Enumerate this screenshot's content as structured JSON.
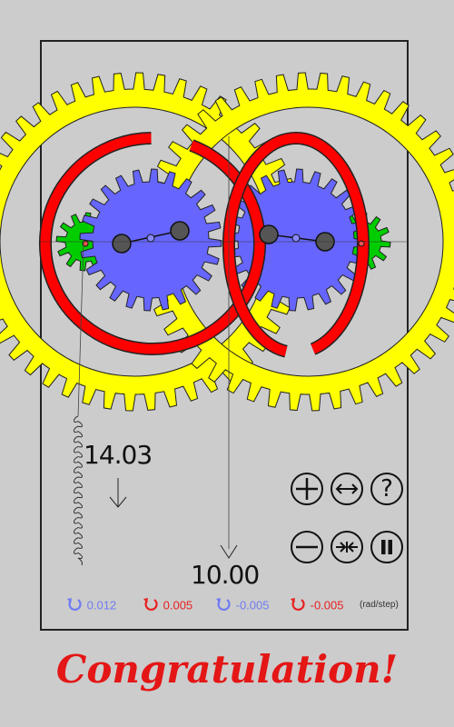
{
  "readouts": {
    "left_value": "14.03",
    "bottom_value": "10.00"
  },
  "rates": [
    {
      "label": "0.012",
      "color": "#6f7bf0",
      "direction": "counter-clockwise"
    },
    {
      "label": "0.005",
      "color": "#e82020",
      "direction": "counter-clockwise"
    },
    {
      "label": "-0.005",
      "color": "#6f7bf0",
      "direction": "counter-clockwise"
    },
    {
      "label": "-0.005",
      "color": "#e82020",
      "direction": "counter-clockwise"
    }
  ],
  "rate_units": "(rad/step)",
  "controls": {
    "top_row": [
      "plus-icon",
      "expand-arrows-icon",
      "question-icon"
    ],
    "bottom_row": [
      "minus-icon",
      "contract-arrows-icon",
      "pause-icon"
    ],
    "help_label": "?"
  },
  "message": "Congratulation!",
  "colors": {
    "ring_gear": "#ffff00",
    "sun_gear": "#6666ff",
    "planet_gear": "#00cc00",
    "carrier_ring": "#ff0000",
    "arm_joint": "#555555",
    "congrats": "#e41616"
  }
}
